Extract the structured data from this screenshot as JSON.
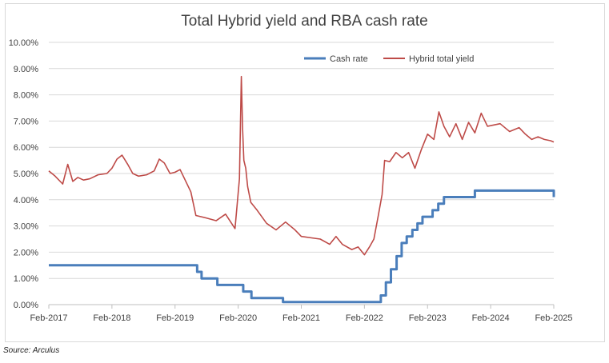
{
  "chart_data": {
    "type": "line",
    "title": "Total Hybrid yield and RBA cash rate",
    "source": "Source: Arculus",
    "ylim": [
      0,
      10
    ],
    "ytick_labels": [
      "0.00%",
      "1.00%",
      "2.00%",
      "3.00%",
      "4.00%",
      "5.00%",
      "6.00%",
      "7.00%",
      "8.00%",
      "9.00%",
      "10.00%"
    ],
    "xlim": [
      2017,
      2025
    ],
    "xtick_labels": [
      "Feb-2017",
      "Feb-2018",
      "Feb-2019",
      "Feb-2020",
      "Feb-2021",
      "Feb-2022",
      "Feb-2023",
      "Feb-2024",
      "Feb-2025"
    ],
    "legend": [
      "Cash rate",
      "Hybrid total yield"
    ],
    "colors": {
      "cash_rate": "#4a7ebb",
      "hybrid": "#be4b48"
    },
    "series": [
      {
        "name": "Cash rate",
        "step": true,
        "x": [
          2017.0,
          2019.35,
          2019.42,
          2019.67,
          2020.08,
          2020.21,
          2020.71,
          2022.26,
          2022.34,
          2022.42,
          2022.51,
          2022.59,
          2022.67,
          2022.76,
          2022.84,
          2022.92,
          2023.08,
          2023.17,
          2023.26,
          2023.42,
          2023.75,
          2025.0
        ],
        "values": [
          1.5,
          1.25,
          1.0,
          0.75,
          0.5,
          0.25,
          0.1,
          0.35,
          0.85,
          1.35,
          1.85,
          2.35,
          2.6,
          2.85,
          3.1,
          3.35,
          3.6,
          3.85,
          4.1,
          4.1,
          4.35,
          4.1
        ]
      },
      {
        "name": "Hybrid total yield",
        "step": false,
        "x": [
          2017.0,
          2017.1,
          2017.22,
          2017.3,
          2017.38,
          2017.46,
          2017.55,
          2017.65,
          2017.78,
          2017.92,
          2018.0,
          2018.08,
          2018.16,
          2018.25,
          2018.33,
          2018.42,
          2018.55,
          2018.67,
          2018.75,
          2018.83,
          2018.92,
          2019.0,
          2019.08,
          2019.17,
          2019.25,
          2019.33,
          2019.5,
          2019.65,
          2019.8,
          2019.95,
          2020.02,
          2020.05,
          2020.07,
          2020.09,
          2020.12,
          2020.15,
          2020.2,
          2020.3,
          2020.45,
          2020.6,
          2020.75,
          2020.9,
          2021.0,
          2021.15,
          2021.3,
          2021.45,
          2021.55,
          2021.65,
          2021.8,
          2021.9,
          2022.0,
          2022.08,
          2022.15,
          2022.22,
          2022.28,
          2022.32,
          2022.4,
          2022.5,
          2022.6,
          2022.7,
          2022.8,
          2022.9,
          2023.0,
          2023.1,
          2023.18,
          2023.26,
          2023.35,
          2023.45,
          2023.55,
          2023.65,
          2023.75,
          2023.85,
          2023.95,
          2024.05,
          2024.15,
          2024.3,
          2024.45,
          2024.55,
          2024.65,
          2024.75,
          2024.85,
          2024.95,
          2025.0
        ],
        "values": [
          5.1,
          4.9,
          4.6,
          5.35,
          4.7,
          4.85,
          4.75,
          4.8,
          4.95,
          5.0,
          5.2,
          5.55,
          5.7,
          5.35,
          5.0,
          4.9,
          4.95,
          5.1,
          5.55,
          5.4,
          5.0,
          5.05,
          5.15,
          4.7,
          4.3,
          3.4,
          3.3,
          3.2,
          3.45,
          2.9,
          4.8,
          8.7,
          6.7,
          5.5,
          5.2,
          4.5,
          3.9,
          3.6,
          3.1,
          2.85,
          3.15,
          2.85,
          2.6,
          2.55,
          2.5,
          2.3,
          2.6,
          2.3,
          2.1,
          2.2,
          1.9,
          2.2,
          2.5,
          3.4,
          4.2,
          5.5,
          5.45,
          5.8,
          5.6,
          5.8,
          5.2,
          5.9,
          6.5,
          6.3,
          7.35,
          6.8,
          6.4,
          6.9,
          6.3,
          6.95,
          6.55,
          7.3,
          6.8,
          6.85,
          6.9,
          6.6,
          6.75,
          6.5,
          6.3,
          6.4,
          6.3,
          6.25,
          6.2
        ]
      }
    ]
  }
}
